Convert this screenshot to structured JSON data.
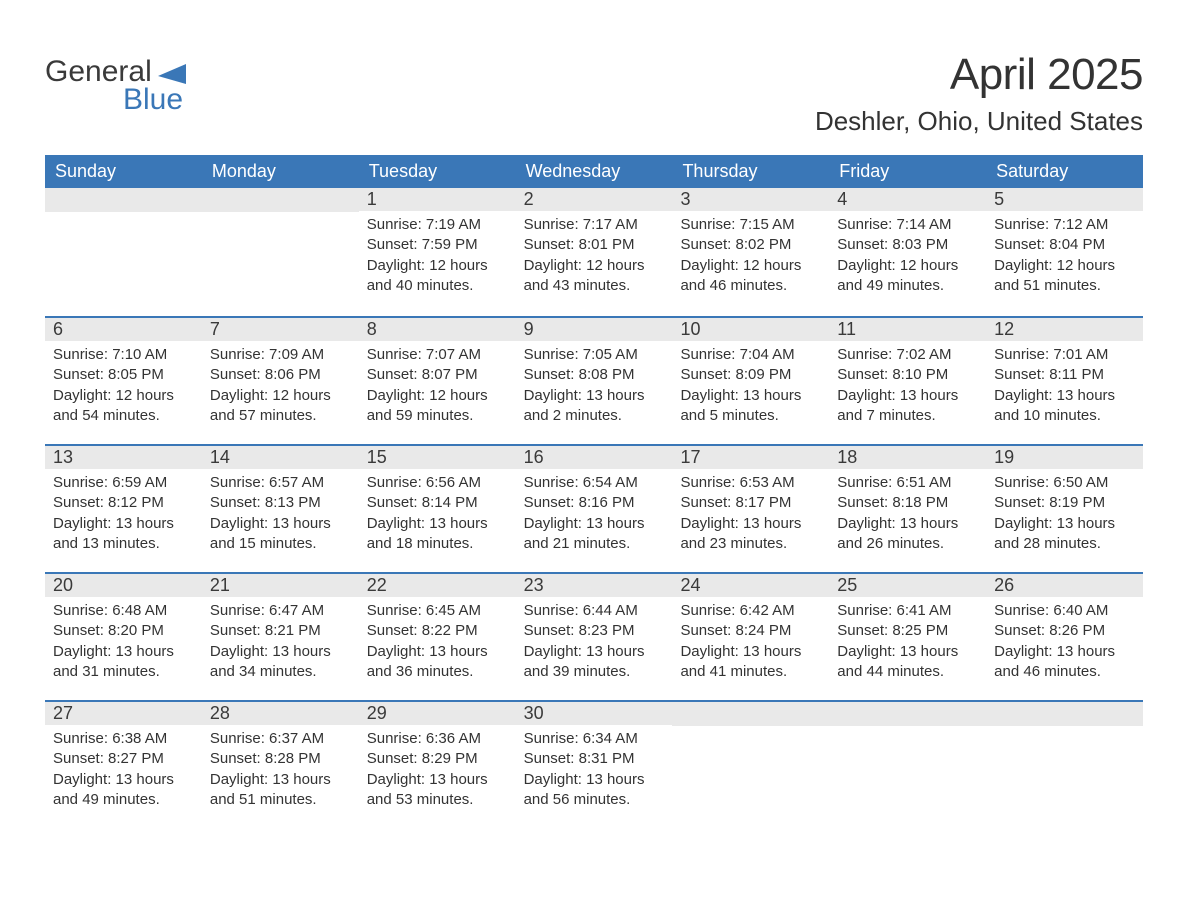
{
  "colors": {
    "header_bg": "#3a77b7",
    "header_text": "#ffffff",
    "daynum_bg": "#e9e9e9",
    "body_text": "#333333",
    "logo_gray": "#3a3a3a",
    "logo_blue": "#3a77b7",
    "week_border": "#3a77b7",
    "page_bg": "#ffffff"
  },
  "typography": {
    "month_title_fontsize": 44,
    "location_fontsize": 26,
    "weekday_fontsize": 18,
    "daynum_fontsize": 18,
    "body_fontsize": 15
  },
  "logo": {
    "line1": "General",
    "line2": "Blue"
  },
  "title": {
    "month": "April 2025",
    "location": "Deshler, Ohio, United States"
  },
  "labels": {
    "sunrise": "Sunrise:",
    "sunset": "Sunset:",
    "daylight": "Daylight:"
  },
  "weekdays": [
    "Sunday",
    "Monday",
    "Tuesday",
    "Wednesday",
    "Thursday",
    "Friday",
    "Saturday"
  ],
  "weeks": [
    [
      null,
      null,
      {
        "n": "1",
        "sunrise": "7:19 AM",
        "sunset": "7:59 PM",
        "daylight": "12 hours and 40 minutes."
      },
      {
        "n": "2",
        "sunrise": "7:17 AM",
        "sunset": "8:01 PM",
        "daylight": "12 hours and 43 minutes."
      },
      {
        "n": "3",
        "sunrise": "7:15 AM",
        "sunset": "8:02 PM",
        "daylight": "12 hours and 46 minutes."
      },
      {
        "n": "4",
        "sunrise": "7:14 AM",
        "sunset": "8:03 PM",
        "daylight": "12 hours and 49 minutes."
      },
      {
        "n": "5",
        "sunrise": "7:12 AM",
        "sunset": "8:04 PM",
        "daylight": "12 hours and 51 minutes."
      }
    ],
    [
      {
        "n": "6",
        "sunrise": "7:10 AM",
        "sunset": "8:05 PM",
        "daylight": "12 hours and 54 minutes."
      },
      {
        "n": "7",
        "sunrise": "7:09 AM",
        "sunset": "8:06 PM",
        "daylight": "12 hours and 57 minutes."
      },
      {
        "n": "8",
        "sunrise": "7:07 AM",
        "sunset": "8:07 PM",
        "daylight": "12 hours and 59 minutes."
      },
      {
        "n": "9",
        "sunrise": "7:05 AM",
        "sunset": "8:08 PM",
        "daylight": "13 hours and 2 minutes."
      },
      {
        "n": "10",
        "sunrise": "7:04 AM",
        "sunset": "8:09 PM",
        "daylight": "13 hours and 5 minutes."
      },
      {
        "n": "11",
        "sunrise": "7:02 AM",
        "sunset": "8:10 PM",
        "daylight": "13 hours and 7 minutes."
      },
      {
        "n": "12",
        "sunrise": "7:01 AM",
        "sunset": "8:11 PM",
        "daylight": "13 hours and 10 minutes."
      }
    ],
    [
      {
        "n": "13",
        "sunrise": "6:59 AM",
        "sunset": "8:12 PM",
        "daylight": "13 hours and 13 minutes."
      },
      {
        "n": "14",
        "sunrise": "6:57 AM",
        "sunset": "8:13 PM",
        "daylight": "13 hours and 15 minutes."
      },
      {
        "n": "15",
        "sunrise": "6:56 AM",
        "sunset": "8:14 PM",
        "daylight": "13 hours and 18 minutes."
      },
      {
        "n": "16",
        "sunrise": "6:54 AM",
        "sunset": "8:16 PM",
        "daylight": "13 hours and 21 minutes."
      },
      {
        "n": "17",
        "sunrise": "6:53 AM",
        "sunset": "8:17 PM",
        "daylight": "13 hours and 23 minutes."
      },
      {
        "n": "18",
        "sunrise": "6:51 AM",
        "sunset": "8:18 PM",
        "daylight": "13 hours and 26 minutes."
      },
      {
        "n": "19",
        "sunrise": "6:50 AM",
        "sunset": "8:19 PM",
        "daylight": "13 hours and 28 minutes."
      }
    ],
    [
      {
        "n": "20",
        "sunrise": "6:48 AM",
        "sunset": "8:20 PM",
        "daylight": "13 hours and 31 minutes."
      },
      {
        "n": "21",
        "sunrise": "6:47 AM",
        "sunset": "8:21 PM",
        "daylight": "13 hours and 34 minutes."
      },
      {
        "n": "22",
        "sunrise": "6:45 AM",
        "sunset": "8:22 PM",
        "daylight": "13 hours and 36 minutes."
      },
      {
        "n": "23",
        "sunrise": "6:44 AM",
        "sunset": "8:23 PM",
        "daylight": "13 hours and 39 minutes."
      },
      {
        "n": "24",
        "sunrise": "6:42 AM",
        "sunset": "8:24 PM",
        "daylight": "13 hours and 41 minutes."
      },
      {
        "n": "25",
        "sunrise": "6:41 AM",
        "sunset": "8:25 PM",
        "daylight": "13 hours and 44 minutes."
      },
      {
        "n": "26",
        "sunrise": "6:40 AM",
        "sunset": "8:26 PM",
        "daylight": "13 hours and 46 minutes."
      }
    ],
    [
      {
        "n": "27",
        "sunrise": "6:38 AM",
        "sunset": "8:27 PM",
        "daylight": "13 hours and 49 minutes."
      },
      {
        "n": "28",
        "sunrise": "6:37 AM",
        "sunset": "8:28 PM",
        "daylight": "13 hours and 51 minutes."
      },
      {
        "n": "29",
        "sunrise": "6:36 AM",
        "sunset": "8:29 PM",
        "daylight": "13 hours and 53 minutes."
      },
      {
        "n": "30",
        "sunrise": "6:34 AM",
        "sunset": "8:31 PM",
        "daylight": "13 hours and 56 minutes."
      },
      null,
      null,
      null
    ]
  ]
}
